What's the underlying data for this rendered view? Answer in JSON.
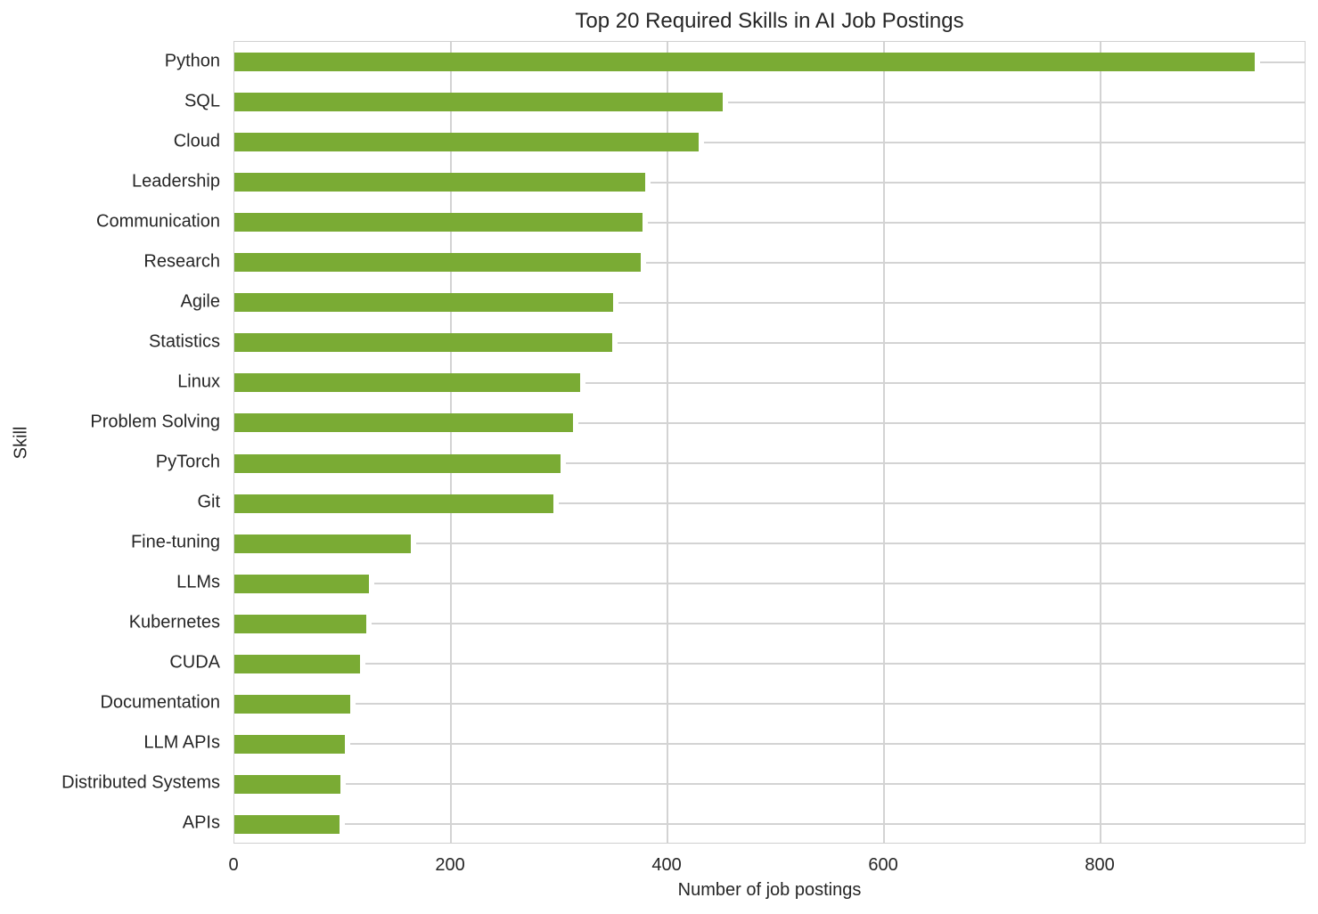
{
  "chart_data": {
    "type": "bar",
    "orientation": "horizontal",
    "title": "Top 20 Required Skills in AI Job Postings",
    "xlabel": "Number of job postings",
    "ylabel": "Skill",
    "xlim": [
      0,
      990
    ],
    "xticks": [
      0,
      200,
      400,
      600,
      800
    ],
    "grid": true,
    "legend": null,
    "bar_color": "#7aab34",
    "categories": [
      "Python",
      "SQL",
      "Cloud",
      "Leadership",
      "Communication",
      "Research",
      "Agile",
      "Statistics",
      "Linux",
      "Problem Solving",
      "PyTorch",
      "Git",
      "Fine-tuning",
      "LLMs",
      "Kubernetes",
      "CUDA",
      "Documentation",
      "LLM APIs",
      "Distributed Systems",
      "APIs"
    ],
    "values": [
      942,
      451,
      429,
      379,
      377,
      375,
      350,
      349,
      319,
      313,
      301,
      295,
      163,
      124,
      122,
      116,
      107,
      102,
      98,
      97
    ]
  }
}
